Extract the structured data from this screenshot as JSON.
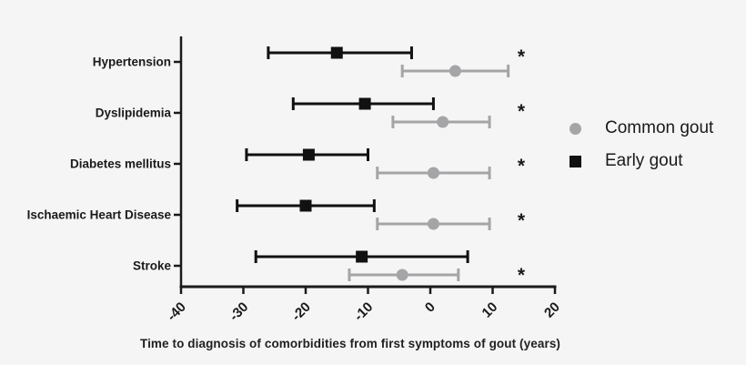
{
  "chart_data": {
    "type": "scatter",
    "subtype": "horizontal_error_bars_forest_plot",
    "title": "",
    "xlabel": "Time to diagnosis of comorbidities from first symptoms of gout (years)",
    "ylabel": "",
    "xlim": [
      -40,
      20
    ],
    "xticks": [
      -40,
      -30,
      -20,
      -10,
      0,
      10,
      20
    ],
    "grid": false,
    "legend_position": "right",
    "categories": [
      "Hypertension",
      "Dyslipidemia",
      "Diabetes mellitus",
      "Ischaemic Heart Disease",
      "Stroke"
    ],
    "significance_marker": "*",
    "significant": [
      true,
      true,
      true,
      true,
      true
    ],
    "series": [
      {
        "name": "Common gout",
        "marker": "circle",
        "color": "#a5a5a8",
        "values": [
          {
            "mean": 4,
            "lo": -4.5,
            "hi": 12.5
          },
          {
            "mean": 2,
            "lo": -6,
            "hi": 9.5
          },
          {
            "mean": 0.5,
            "lo": -8.5,
            "hi": 9.5
          },
          {
            "mean": 0.5,
            "lo": -8.5,
            "hi": 9.5
          },
          {
            "mean": -4.5,
            "lo": -13,
            "hi": 4.5
          }
        ]
      },
      {
        "name": "Early gout",
        "marker": "square",
        "color": "#111111",
        "values": [
          {
            "mean": -15,
            "lo": -26,
            "hi": -3
          },
          {
            "mean": -10.5,
            "lo": -22,
            "hi": 0.5
          },
          {
            "mean": -19.5,
            "lo": -29.5,
            "hi": -10
          },
          {
            "mean": -20,
            "lo": -31,
            "hi": -9
          },
          {
            "mean": -11,
            "lo": -28,
            "hi": 6
          }
        ]
      }
    ],
    "colors": {
      "background": "#f5f5f5",
      "axis": "#1a1a1a",
      "common_gout": "#a5a5a8",
      "early_gout": "#111111"
    }
  }
}
